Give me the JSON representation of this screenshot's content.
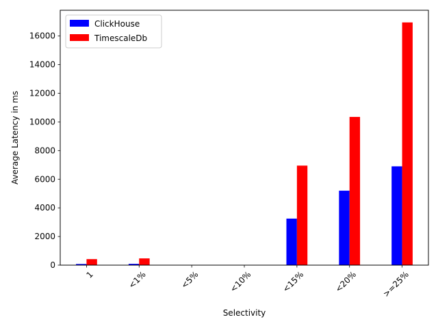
{
  "chart_data": {
    "type": "bar",
    "title": "",
    "xlabel": "Selectivity",
    "ylabel": "Average Latency in ms",
    "categories": [
      "1",
      "<1%",
      "<5%",
      "<10%",
      "<15%",
      "<20%",
      ">=25%"
    ],
    "series": [
      {
        "name": "ClickHouse",
        "color": "#0000ff",
        "values": [
          80,
          90,
          0,
          0,
          3250,
          5200,
          6900
        ]
      },
      {
        "name": "TimescaleDb",
        "color": "#ff0000",
        "values": [
          420,
          470,
          0,
          0,
          6950,
          10350,
          16950
        ]
      }
    ],
    "ylim": [
      0,
      17800
    ],
    "yticks": [
      0,
      2000,
      4000,
      6000,
      8000,
      10000,
      12000,
      14000,
      16000
    ],
    "grid": false,
    "legend": "top-left",
    "xtick_rotation_deg": 45
  }
}
